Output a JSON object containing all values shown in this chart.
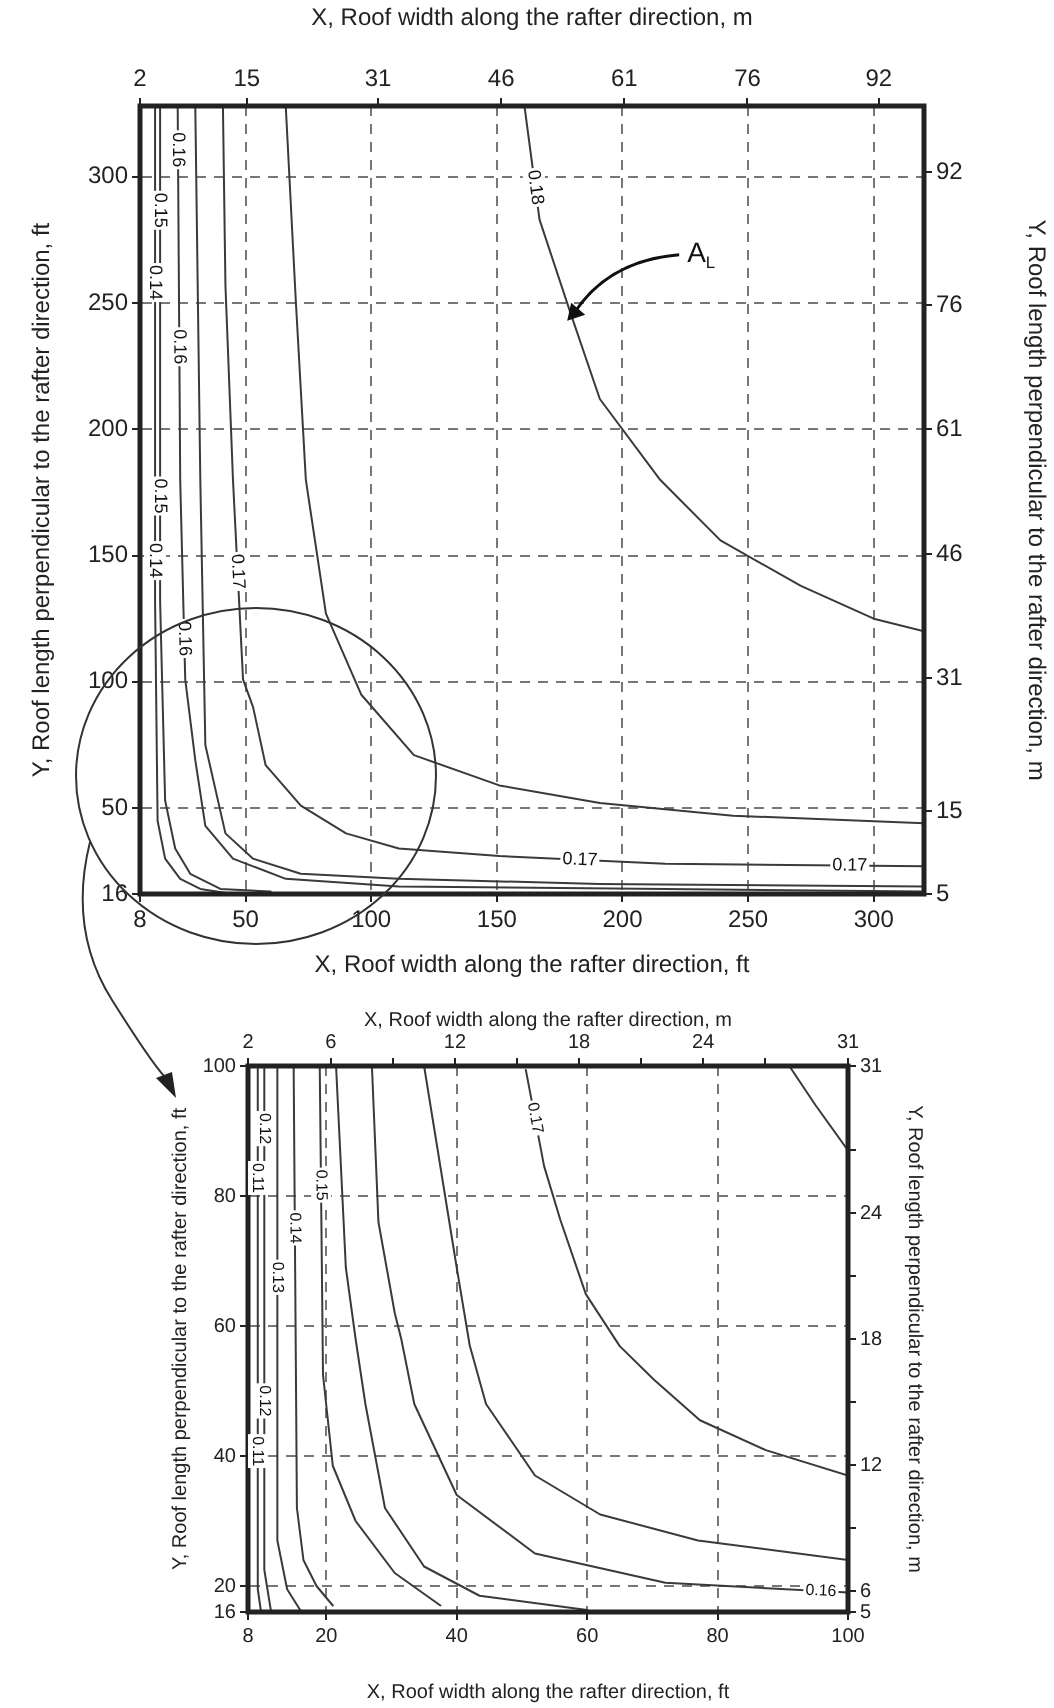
{
  "chart_data": [
    {
      "type": "line",
      "xlabel": "X, Roof width along the rafter direction, ft",
      "ylabel": "Y, Roof length perpendicular to the rafter direction, ft",
      "x2label": "X, Roof width along the rafter direction, m",
      "y2label": "Y, Roof length perpendicular to the rafter direction, m",
      "xlim": [
        8,
        320
      ],
      "xticks": [
        8,
        50,
        100,
        150,
        200,
        250,
        300
      ],
      "ylim": [
        16,
        328
      ],
      "yticks": [
        16,
        50,
        100,
        150,
        200,
        250,
        300
      ],
      "x2lim": [
        2,
        97.5
      ],
      "x2ticks": [
        2,
        15,
        31,
        46,
        61,
        76,
        92
      ],
      "y2lim": [
        5,
        100
      ],
      "y2ticks": [
        5,
        15,
        31,
        46,
        61,
        76,
        92
      ],
      "grid": true,
      "legend": false,
      "marker": "none",
      "line_style": "solid",
      "annotations": [
        {
          "text": "A$_{L}$",
          "x": 178,
          "y": 243
        }
      ],
      "series": [
        {
          "name": "0.18",
          "color": "#3a3a3a",
          "x": [
            161,
            167,
            179,
            191,
            215,
            239,
            271,
            300,
            320
          ],
          "values": [
            328,
            283,
            247,
            212,
            180,
            156,
            138,
            125,
            120
          ]
        },
        {
          "color": "#3a3a3a",
          "x": [
            66,
            70,
            74,
            82,
            96,
            117,
            151,
            191,
            244,
            320
          ],
          "values": [
            328,
            251,
            180,
            127,
            95,
            71,
            59,
            52,
            47,
            44
          ]
        },
        {
          "name": "0.17",
          "color": "#3a3a3a",
          "x": [
            41,
            42,
            45,
            49,
            53,
            58,
            72,
            90,
            111,
            151,
            217,
            320
          ],
          "values": [
            328,
            257,
            180,
            101,
            90,
            67,
            51,
            40,
            34,
            31,
            28,
            27
          ]
        },
        {
          "color": "#3a3a3a",
          "x": [
            30,
            32,
            34,
            42,
            53,
            72,
            111,
            191,
            320
          ],
          "values": [
            328,
            180,
            75,
            40,
            30,
            24,
            22,
            20,
            19
          ]
        },
        {
          "name": "0.16",
          "color": "#3a3a3a",
          "x": [
            23,
            24,
            26,
            30,
            34,
            45,
            66,
            111,
            217,
            320
          ],
          "values": [
            328,
            180,
            101,
            69,
            43,
            30,
            22,
            19,
            18,
            17
          ]
        },
        {
          "name": "0.15",
          "color": "#3a3a3a",
          "x": [
            16,
            16,
            18,
            22,
            28,
            40,
            60
          ],
          "values": [
            328,
            132,
            53,
            34,
            24,
            18,
            17
          ]
        },
        {
          "name": "0.14",
          "color": "#3a3a3a",
          "x": [
            14,
            14,
            15,
            18,
            24,
            32,
            45
          ],
          "values": [
            328,
            132,
            45,
            30,
            22,
            18,
            16
          ]
        }
      ]
    },
    {
      "type": "line",
      "xlabel": "X, Roof width along the rafter direction, ft",
      "ylabel": "Y, Roof length perpendicular to the rafter direction, ft",
      "x2label": "X, Roof width along the rafter direction, m",
      "y2label": "Y, Roof length perpendicular to the rafter direction, m",
      "xlim": [
        8,
        100
      ],
      "xticks": [
        8,
        20,
        40,
        60,
        80,
        100
      ],
      "ylim": [
        16,
        100
      ],
      "yticks": [
        16,
        20,
        40,
        60,
        80,
        100
      ],
      "x2lim": [
        2,
        31
      ],
      "x2ticks": [
        2,
        6,
        {
          "value": 9,
          "label": null
        },
        12,
        {
          "value": 15,
          "label": null
        },
        18,
        {
          "value": 21,
          "label": null
        },
        24,
        {
          "value": 27,
          "label": null
        },
        31
      ],
      "y2lim": [
        5,
        31
      ],
      "y2ticks": [
        5,
        6,
        {
          "value": 9,
          "label": null
        },
        12,
        {
          "value": 15,
          "label": null
        },
        18,
        {
          "value": 21,
          "label": null
        },
        24,
        {
          "value": 27,
          "label": null
        },
        31
      ],
      "grid": true,
      "legend": false,
      "marker": "none",
      "line_style": "solid",
      "series": [
        {
          "color": "#3a3a3a",
          "x": [
            91,
            95,
            100
          ],
          "values": [
            100,
            94,
            87
          ]
        },
        {
          "name": "0.17",
          "color": "#3a3a3a",
          "x": [
            50.6,
            53.4,
            55.9,
            59.8,
            65,
            70.3,
            77.3,
            87.4,
            100
          ],
          "values": [
            99.4,
            84.6,
            76.3,
            64.9,
            56.9,
            51.7,
            45.5,
            40.9,
            37
          ]
        },
        {
          "color": "#3a3a3a",
          "x": [
            35,
            40,
            42,
            44.5,
            52,
            62,
            77,
            100
          ],
          "values": [
            100,
            69,
            57,
            48,
            37,
            31,
            27,
            24
          ]
        },
        {
          "name": "0.16",
          "color": "#3a3a3a",
          "x": [
            27,
            28,
            30.5,
            31.5,
            33.5,
            40,
            52,
            72,
            100
          ],
          "values": [
            100,
            76,
            62,
            58,
            48,
            34,
            25,
            20.5,
            19
          ]
        },
        {
          "color": "#3a3a3a",
          "x": [
            21.5,
            23,
            24.5,
            26,
            29,
            35,
            43.5,
            60
          ],
          "values": [
            100,
            69,
            58,
            48,
            32,
            23,
            18.5,
            16.3
          ]
        },
        {
          "name": "0.15",
          "color": "#3a3a3a",
          "x": [
            19,
            19.5,
            21,
            24.5,
            30.5,
            37.5
          ],
          "values": [
            100,
            52.5,
            38.5,
            30,
            22,
            17
          ]
        },
        {
          "name": "0.14",
          "color": "#3a3a3a",
          "x": [
            15,
            15.5,
            16.5,
            18.5,
            21
          ],
          "values": [
            100,
            32,
            24,
            20,
            17
          ]
        },
        {
          "name": "0.13",
          "color": "#3a3a3a",
          "x": [
            12.5,
            12.5,
            14,
            16
          ],
          "values": [
            100,
            27,
            19.5,
            16.3
          ]
        },
        {
          "name": "0.12",
          "color": "#3a3a3a",
          "x": [
            10.5,
            10.5,
            11.5
          ],
          "values": [
            100,
            22.5,
            16.3
          ]
        },
        {
          "name": "0.11",
          "color": "#3a3a3a",
          "x": [
            9.5,
            9.5,
            10
          ],
          "values": [
            100,
            19.5,
            16
          ]
        }
      ]
    }
  ]
}
